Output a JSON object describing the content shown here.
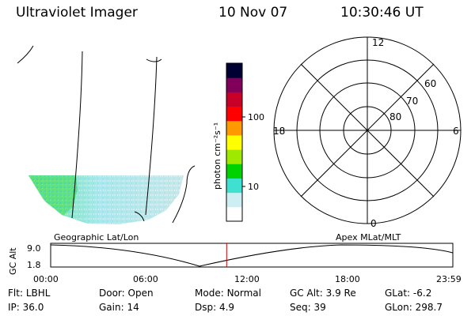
{
  "header": {
    "instrument": "Ultraviolet Imager",
    "date": "10 Nov 07",
    "time": "10:30:46 UT"
  },
  "colorbar": {
    "unit_label": "photon cm⁻²s⁻¹",
    "tick_labels": [
      "100",
      "10"
    ],
    "colors": [
      "#ffffff",
      "#cdeef3",
      "#40e0d0",
      "#00d200",
      "#9fe800",
      "#ffff00",
      "#ff9900",
      "#ff0000",
      "#c80028",
      "#80005a",
      "#000033"
    ]
  },
  "polar_plot": {
    "mlt_labels": {
      "top": "12",
      "left": "18",
      "right": "6",
      "bottom": "0"
    },
    "lat_labels": [
      "60",
      "70",
      "80"
    ]
  },
  "timeline": {
    "left_label": "Geographic Lat/Lon",
    "right_label": "Apex MLat/MLT",
    "y_axis_title": "GC Alt",
    "y_ticks": [
      "9.0",
      "1.8"
    ],
    "x_ticks": [
      "00:00",
      "06:00",
      "12:00",
      "18:00",
      "23:59"
    ],
    "current_time_marker_fraction": 0.4376
  },
  "status": {
    "row1": [
      {
        "key": "filter",
        "label": "Flt:",
        "value": "LBHL"
      },
      {
        "key": "door",
        "label": "Door:",
        "value": "Open"
      },
      {
        "key": "mode",
        "label": "Mode:",
        "value": "Normal"
      },
      {
        "key": "gc_alt",
        "label": "GC Alt:",
        "value": "3.9 Re"
      },
      {
        "key": "glat",
        "label": "GLat:",
        "value": "-6.2"
      }
    ],
    "row2": [
      {
        "key": "ip",
        "label": "IP:",
        "value": "36.0"
      },
      {
        "key": "gain",
        "label": "Gain:",
        "value": "14"
      },
      {
        "key": "dsp",
        "label": "Dsp:",
        "value": "4.9"
      },
      {
        "key": "seq",
        "label": "Seq:",
        "value": "39"
      },
      {
        "key": "glon",
        "label": "GLon:",
        "value": "298.7"
      }
    ]
  }
}
